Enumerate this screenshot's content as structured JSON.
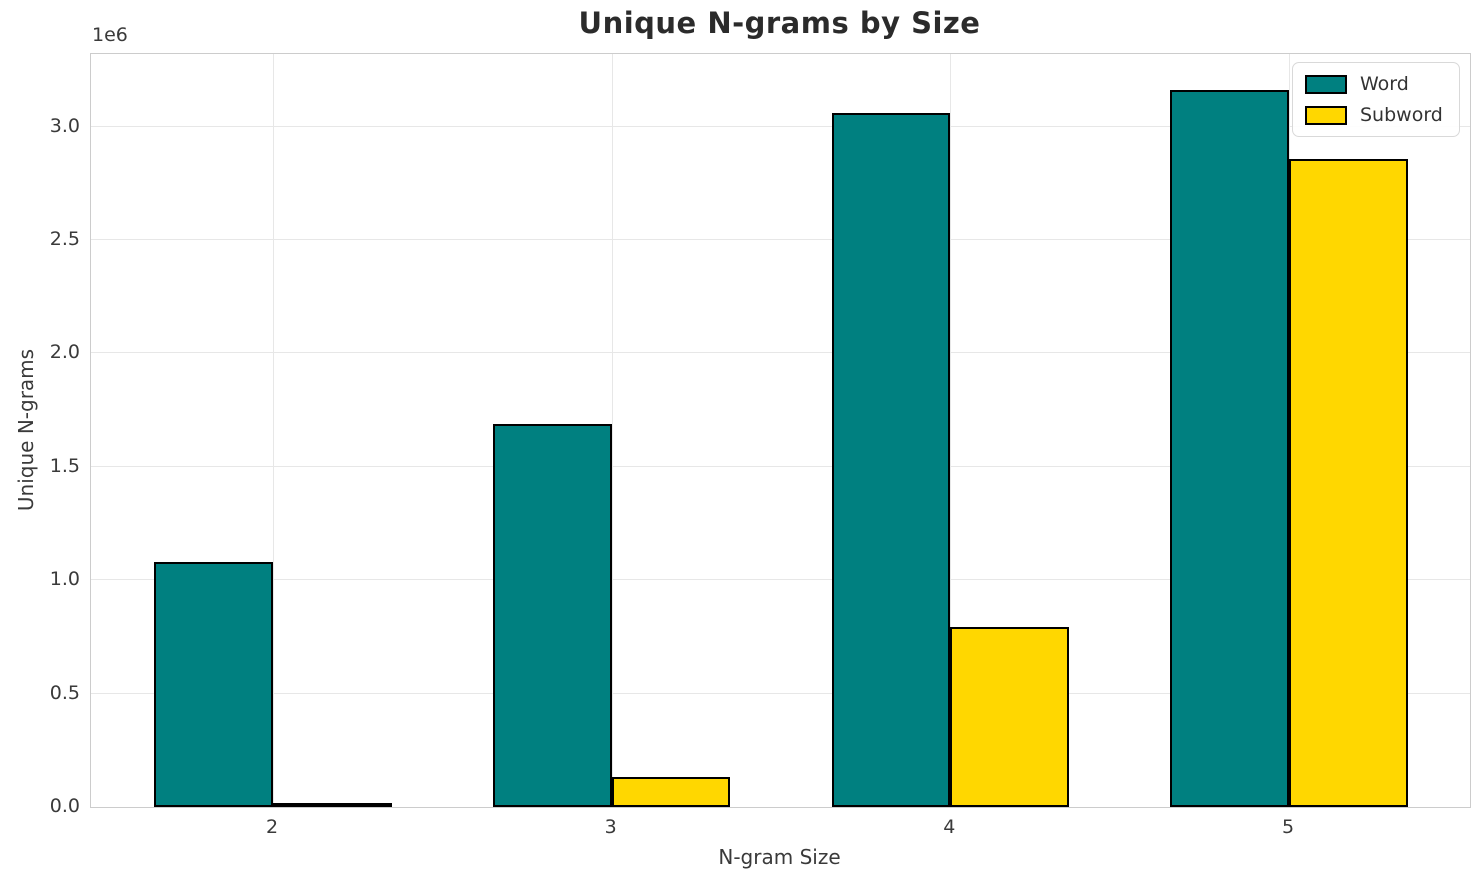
{
  "chart_data": {
    "type": "bar",
    "title": "Unique N-grams by Size",
    "xlabel": "N-gram Size",
    "ylabel": "Unique N-grams",
    "y_offset_label": "1e6",
    "categories": [
      "2",
      "3",
      "4",
      "5"
    ],
    "series": [
      {
        "name": "Word",
        "color": "#008080",
        "values": [
          1081000,
          1688000,
          3061000,
          3160000
        ]
      },
      {
        "name": "Subword",
        "color": "#FFD700",
        "values": [
          14000,
          131000,
          792000,
          2856000
        ]
      }
    ],
    "edge_color": "#000000",
    "ylim": [
      0,
      3320000
    ],
    "yticks": {
      "values": [
        0,
        500000,
        1000000,
        1500000,
        2000000,
        2500000,
        3000000
      ],
      "labels": [
        "0.0",
        "0.5",
        "1.0",
        "1.5",
        "2.0",
        "2.5",
        "3.0"
      ]
    },
    "grid": true,
    "grid_color": "#e7e7e7",
    "spine_color": "#cccccc",
    "background": "#ffffff",
    "title_color": "#2b2b2b",
    "text_color": "#3a3a3a",
    "legend": {
      "position": "upper right",
      "entries": [
        "Word",
        "Subword"
      ]
    }
  }
}
